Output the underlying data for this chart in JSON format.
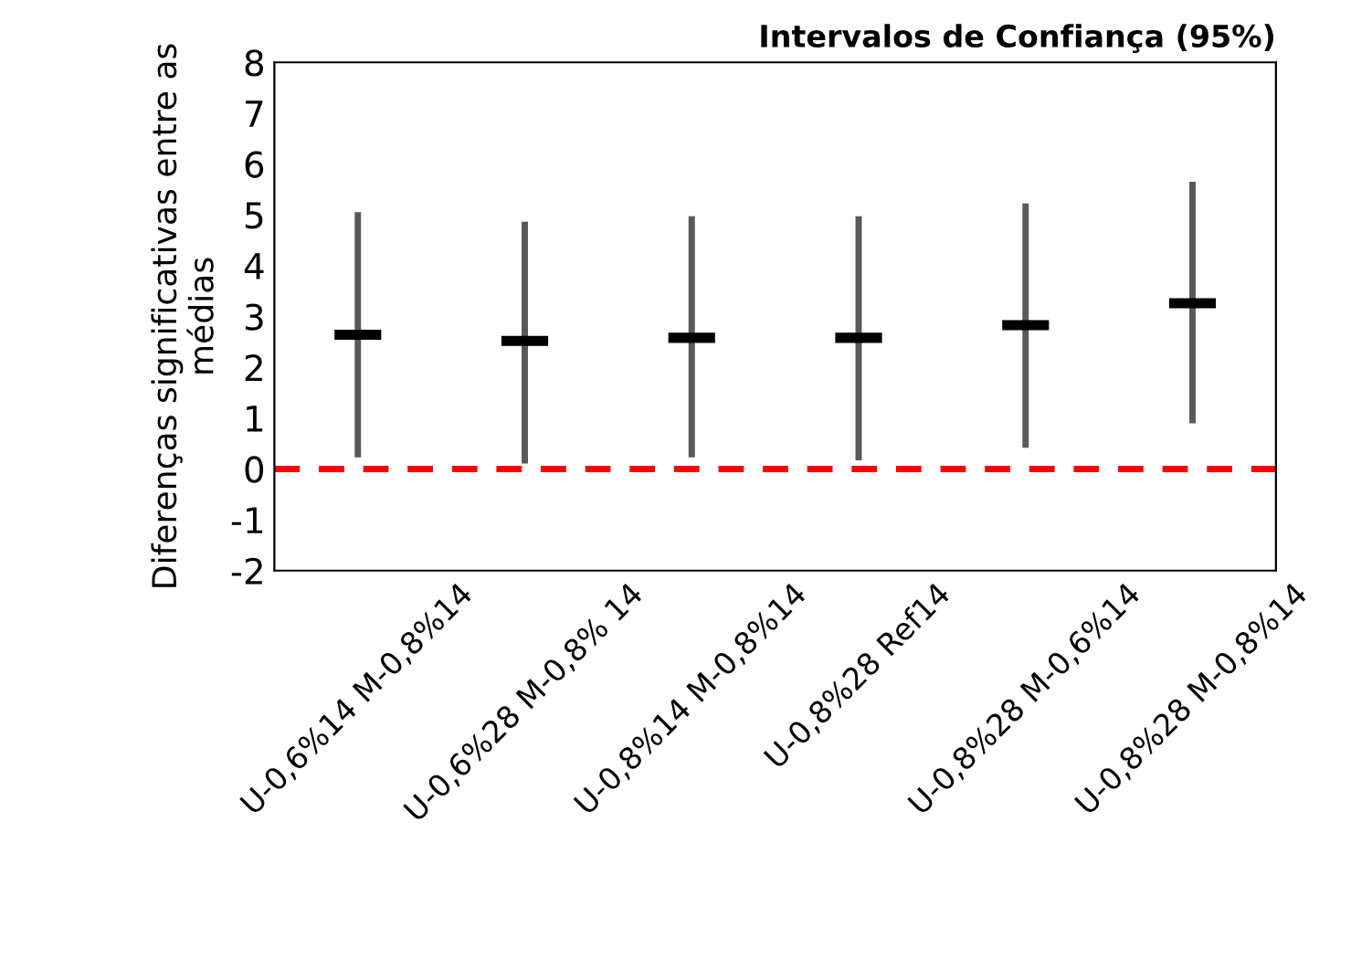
{
  "chart_data": {
    "type": "box",
    "title": "Intervalos de Confiança (95%)",
    "ylabel": "Diferenças significativas entre as médias",
    "categories": [
      "U-0,6%14 M-0,8%14",
      "U-0,6%28 M-0,8% 14",
      "U-0,8%14 M-0,8%14",
      "U-0,8%28 Ref14",
      "U-0,8%28 M-0,6%14",
      "U-0,8%28 M-0,8%14"
    ],
    "boxes": [
      {
        "low": 0.29,
        "q1": 2.64,
        "median": 2.64,
        "q3": 2.64,
        "high": 4.99
      },
      {
        "low": 0.17,
        "q1": 2.52,
        "median": 2.52,
        "q3": 2.52,
        "high": 4.8
      },
      {
        "low": 0.29,
        "q1": 2.58,
        "median": 2.58,
        "q3": 2.58,
        "high": 4.91
      },
      {
        "low": 0.23,
        "q1": 2.58,
        "median": 2.58,
        "q3": 2.58,
        "high": 4.91
      },
      {
        "low": 0.48,
        "q1": 2.83,
        "median": 2.83,
        "q3": 2.83,
        "high": 5.16
      },
      {
        "low": 0.96,
        "q1": 3.26,
        "median": 3.26,
        "q3": 3.26,
        "high": 5.59
      }
    ],
    "color": "#000000",
    "ylim": [
      -2,
      8
    ],
    "yticks": [
      -2,
      -1,
      0,
      1,
      2,
      3,
      4,
      5,
      6,
      7,
      8
    ],
    "ref_lines": [
      {
        "axis": "y",
        "value": 0,
        "color": "#ff0000",
        "line_style": "dashed"
      }
    ],
    "grid": false,
    "legend": false
  }
}
